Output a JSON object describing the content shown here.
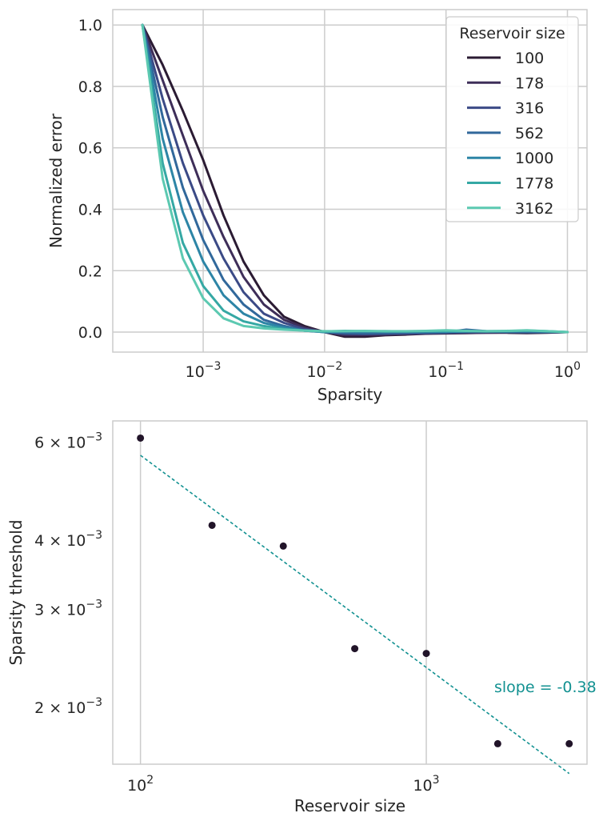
{
  "chart_data": [
    {
      "type": "line",
      "xlabel": "Sparsity",
      "ylabel": "Normalized error",
      "xscale": "log",
      "xlim": [
        0.00018,
        1.45
      ],
      "ylim": [
        -0.065,
        1.05
      ],
      "xticks": [
        {
          "value": 0.001,
          "base": "10",
          "exp": "−3"
        },
        {
          "value": 0.01,
          "base": "10",
          "exp": "−2"
        },
        {
          "value": 0.1,
          "base": "10",
          "exp": "−1"
        },
        {
          "value": 1,
          "base": "10",
          "exp": "0"
        }
      ],
      "yticks": [
        {
          "value": 0.0,
          "label": "0.0"
        },
        {
          "value": 0.2,
          "label": "0.2"
        },
        {
          "value": 0.4,
          "label": "0.4"
        },
        {
          "value": 0.6,
          "label": "0.6"
        },
        {
          "value": 0.8,
          "label": "0.8"
        },
        {
          "value": 1.0,
          "label": "1.0"
        }
      ],
      "grid": true,
      "legend_title": "Reservoir size",
      "legend_placement": "top-right",
      "x": [
        0.000316,
        0.000464,
        0.000681,
        0.001,
        0.00147,
        0.00215,
        0.00316,
        0.00464,
        0.00681,
        0.01,
        0.0147,
        0.0215,
        0.0316,
        0.0464,
        0.0681,
        0.1,
        0.147,
        0.215,
        0.316,
        0.464,
        0.681,
        1.0
      ],
      "series": [
        {
          "name": "100",
          "color": "#2b1b33",
          "values": [
            1.0,
            0.87,
            0.72,
            0.56,
            0.38,
            0.23,
            0.12,
            0.05,
            0.02,
            0.0,
            -0.015,
            -0.015,
            -0.01,
            -0.008,
            -0.005,
            -0.004,
            -0.003,
            -0.002,
            -0.002,
            -0.003,
            -0.002,
            0.0
          ]
        },
        {
          "name": "178",
          "color": "#3e2e59",
          "values": [
            1.0,
            0.82,
            0.64,
            0.46,
            0.31,
            0.18,
            0.09,
            0.04,
            0.015,
            0.0,
            -0.01,
            -0.01,
            -0.008,
            -0.006,
            -0.004,
            -0.003,
            -0.002,
            -0.002,
            -0.001,
            -0.002,
            -0.001,
            0.0
          ]
        },
        {
          "name": "316",
          "color": "#3b4a86",
          "values": [
            1.0,
            0.76,
            0.55,
            0.38,
            0.24,
            0.13,
            0.06,
            0.03,
            0.01,
            0.0,
            -0.005,
            -0.006,
            -0.005,
            -0.004,
            -0.003,
            -0.002,
            -0.001,
            0.0,
            0.001,
            0.0,
            0.0,
            0.0
          ]
        },
        {
          "name": "562",
          "color": "#31689b",
          "values": [
            1.0,
            0.7,
            0.47,
            0.3,
            0.17,
            0.09,
            0.04,
            0.02,
            0.005,
            0.0,
            -0.003,
            -0.004,
            -0.003,
            -0.002,
            -0.001,
            0.0,
            0.008,
            0.003,
            0.001,
            0.0,
            0.0,
            0.0
          ]
        },
        {
          "name": "1000",
          "color": "#2d85a6",
          "values": [
            1.0,
            0.63,
            0.39,
            0.23,
            0.12,
            0.06,
            0.03,
            0.015,
            0.005,
            0.0,
            0.002,
            0.002,
            0.003,
            0.002,
            0.002,
            0.001,
            0.002,
            0.003,
            0.003,
            0.004,
            0.002,
            0.0
          ]
        },
        {
          "name": "1778",
          "color": "#35a8a4",
          "values": [
            1.0,
            0.55,
            0.29,
            0.15,
            0.07,
            0.035,
            0.02,
            0.01,
            0.005,
            0.002,
            0.004,
            0.003,
            0.002,
            0.002,
            0.003,
            0.004,
            0.003,
            0.002,
            0.003,
            0.005,
            0.003,
            0.0
          ]
        },
        {
          "name": "3162",
          "color": "#5cc9b1",
          "values": [
            1.0,
            0.5,
            0.24,
            0.11,
            0.045,
            0.02,
            0.012,
            0.008,
            0.005,
            0.003,
            0.003,
            0.004,
            0.003,
            0.003,
            0.004,
            0.006,
            0.004,
            0.003,
            0.004,
            0.006,
            0.003,
            0.0
          ]
        }
      ]
    },
    {
      "type": "scatter",
      "xlabel": "Reservoir size",
      "ylabel": "Sparsity threshold",
      "xscale": "log",
      "yscale": "log",
      "xlim": [
        80,
        3650
      ],
      "ylim": [
        0.00158,
        0.00655
      ],
      "xticks": [
        {
          "value": 100,
          "base": "10",
          "exp": "2"
        },
        {
          "value": 1000,
          "base": "10",
          "exp": "3"
        }
      ],
      "yticks": [
        {
          "value": 0.002,
          "label": "2 × 10",
          "exp": "−3"
        },
        {
          "value": 0.003,
          "label": "3 × 10",
          "exp": "−3"
        },
        {
          "value": 0.004,
          "label": "4 × 10",
          "exp": "−3"
        },
        {
          "value": 0.006,
          "label": "6 × 10",
          "exp": "−3"
        }
      ],
      "grid": true,
      "point_color": "#211429",
      "fit_color": "#129191",
      "points": {
        "x": [
          100,
          178,
          316,
          562,
          1000,
          1778,
          3162
        ],
        "y": [
          0.0061,
          0.00425,
          0.0039,
          0.00255,
          0.0025,
          0.00172,
          0.00172
        ]
      },
      "fit_line": {
        "x": [
          100,
          3162
        ],
        "y": [
          0.00568,
          0.00152
        ]
      },
      "annotation": "slope = -0.38"
    }
  ]
}
